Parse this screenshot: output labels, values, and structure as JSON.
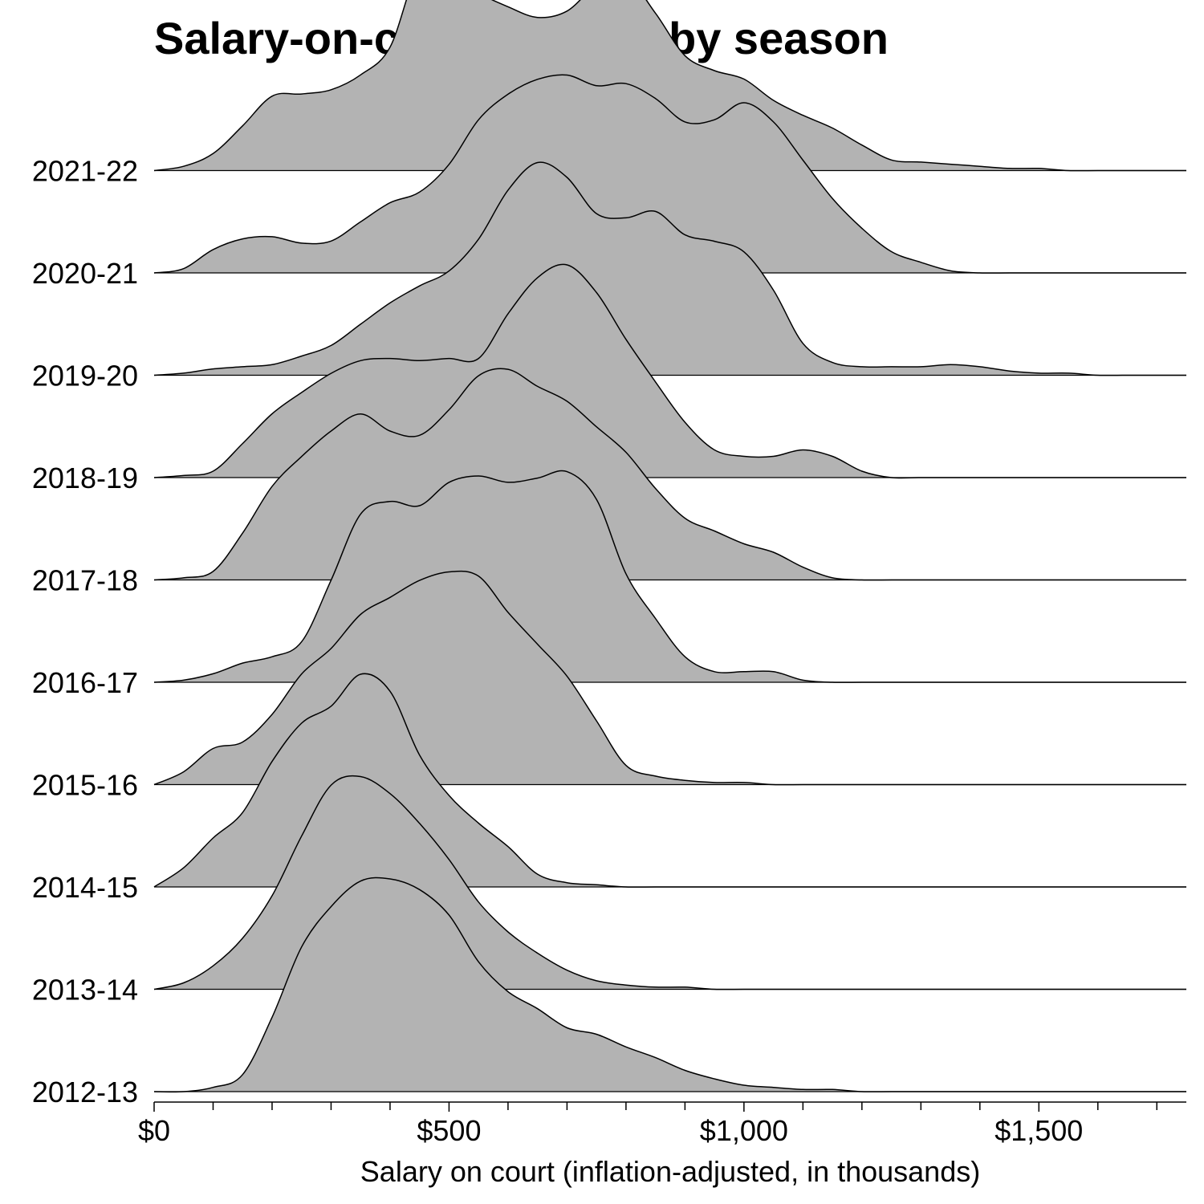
{
  "chart_data": {
    "type": "area",
    "subtype": "ridgeline",
    "title": "Salary-on-court density by season",
    "xlabel": "Salary on court (inflation-adjusted, in thousands)",
    "ylabel": "",
    "xlim": [
      0,
      1750
    ],
    "x_ticks": [
      0,
      500,
      1000,
      1500
    ],
    "x_tick_labels": [
      "$0",
      "$500",
      "$1,000",
      "$1,500"
    ],
    "x_minor_ticks": [
      100,
      200,
      300,
      400,
      600,
      700,
      800,
      900,
      1100,
      1200,
      1300,
      1400,
      1600,
      1700
    ],
    "fill_color": "#b3b3b3",
    "line_color": "#000000",
    "x": [
      0,
      50,
      100,
      150,
      200,
      250,
      300,
      350,
      400,
      450,
      500,
      550,
      600,
      650,
      700,
      750,
      800,
      850,
      900,
      950,
      1000,
      1050,
      1100,
      1150,
      1200,
      1250,
      1300,
      1350,
      1400,
      1450,
      1500,
      1550,
      1600,
      1650,
      1700,
      1750
    ],
    "series": [
      {
        "name": "2012-13",
        "values": [
          0,
          0,
          0.02,
          0.08,
          0.35,
          0.68,
          0.87,
          0.99,
          1.0,
          0.95,
          0.83,
          0.61,
          0.47,
          0.39,
          0.3,
          0.27,
          0.21,
          0.16,
          0.1,
          0.06,
          0.03,
          0.02,
          0.01,
          0.01,
          0,
          0,
          0,
          0,
          0,
          0,
          0,
          0,
          0,
          0,
          0,
          0
        ]
      },
      {
        "name": "2013-14",
        "values": [
          0,
          0.03,
          0.11,
          0.24,
          0.44,
          0.72,
          0.96,
          1.0,
          0.92,
          0.78,
          0.61,
          0.41,
          0.27,
          0.17,
          0.09,
          0.04,
          0.02,
          0.01,
          0.01,
          0,
          0,
          0,
          0,
          0,
          0,
          0,
          0,
          0,
          0,
          0,
          0,
          0,
          0,
          0,
          0,
          0
        ]
      },
      {
        "name": "2014-15",
        "values": [
          0,
          0.09,
          0.23,
          0.35,
          0.59,
          0.77,
          0.85,
          1.0,
          0.92,
          0.62,
          0.43,
          0.3,
          0.19,
          0.06,
          0.02,
          0.01,
          0,
          0,
          0,
          0,
          0,
          0,
          0,
          0,
          0,
          0,
          0,
          0,
          0,
          0,
          0,
          0,
          0,
          0,
          0,
          0
        ]
      },
      {
        "name": "2015-16",
        "values": [
          0,
          0.06,
          0.17,
          0.2,
          0.33,
          0.52,
          0.64,
          0.8,
          0.88,
          0.96,
          1.0,
          0.98,
          0.81,
          0.66,
          0.51,
          0.3,
          0.09,
          0.04,
          0.02,
          0.01,
          0.01,
          0,
          0,
          0,
          0,
          0,
          0,
          0,
          0,
          0,
          0,
          0,
          0,
          0,
          0,
          0
        ]
      },
      {
        "name": "2016-17",
        "values": [
          0,
          0.01,
          0.04,
          0.09,
          0.12,
          0.19,
          0.48,
          0.79,
          0.85,
          0.83,
          0.94,
          0.97,
          0.94,
          0.96,
          0.99,
          0.86,
          0.51,
          0.3,
          0.12,
          0.05,
          0.05,
          0.05,
          0.01,
          0,
          0,
          0,
          0,
          0,
          0,
          0,
          0,
          0,
          0,
          0,
          0,
          0
        ]
      },
      {
        "name": "2017-18",
        "values": [
          0,
          0.01,
          0.04,
          0.22,
          0.44,
          0.58,
          0.7,
          0.78,
          0.7,
          0.68,
          0.8,
          0.96,
          0.99,
          0.91,
          0.84,
          0.72,
          0.6,
          0.43,
          0.29,
          0.23,
          0.17,
          0.13,
          0.06,
          0.01,
          0,
          0,
          0,
          0,
          0,
          0,
          0,
          0,
          0,
          0,
          0,
          0
        ]
      },
      {
        "name": "2018-19",
        "values": [
          0,
          0.01,
          0.03,
          0.16,
          0.3,
          0.4,
          0.49,
          0.55,
          0.56,
          0.55,
          0.56,
          0.56,
          0.77,
          0.94,
          1.0,
          0.87,
          0.65,
          0.45,
          0.26,
          0.13,
          0.1,
          0.1,
          0.13,
          0.1,
          0.03,
          0,
          0,
          0,
          0,
          0,
          0,
          0,
          0,
          0,
          0,
          0
        ]
      },
      {
        "name": "2019-20",
        "values": [
          0,
          0.01,
          0.03,
          0.04,
          0.05,
          0.09,
          0.14,
          0.24,
          0.34,
          0.42,
          0.49,
          0.64,
          0.87,
          1.0,
          0.93,
          0.76,
          0.74,
          0.77,
          0.66,
          0.63,
          0.58,
          0.4,
          0.15,
          0.06,
          0.04,
          0.04,
          0.04,
          0.05,
          0.04,
          0.02,
          0.01,
          0.01,
          0,
          0,
          0,
          0
        ]
      },
      {
        "name": "2020-21",
        "values": [
          0,
          0.02,
          0.11,
          0.16,
          0.17,
          0.14,
          0.15,
          0.24,
          0.33,
          0.38,
          0.51,
          0.72,
          0.84,
          0.91,
          0.93,
          0.88,
          0.89,
          0.82,
          0.71,
          0.72,
          0.8,
          0.71,
          0.53,
          0.35,
          0.21,
          0.1,
          0.05,
          0.01,
          0,
          0,
          0,
          0,
          0,
          0,
          0,
          0
        ]
      },
      {
        "name": "2021-22",
        "values": [
          0,
          0.02,
          0.08,
          0.21,
          0.35,
          0.36,
          0.38,
          0.45,
          0.58,
          0.96,
          0.97,
          0.84,
          0.77,
          0.72,
          0.75,
          0.87,
          0.91,
          0.74,
          0.54,
          0.47,
          0.43,
          0.33,
          0.26,
          0.2,
          0.12,
          0.05,
          0.04,
          0.03,
          0.02,
          0.01,
          0.01,
          0,
          0,
          0,
          0,
          0
        ]
      }
    ]
  }
}
